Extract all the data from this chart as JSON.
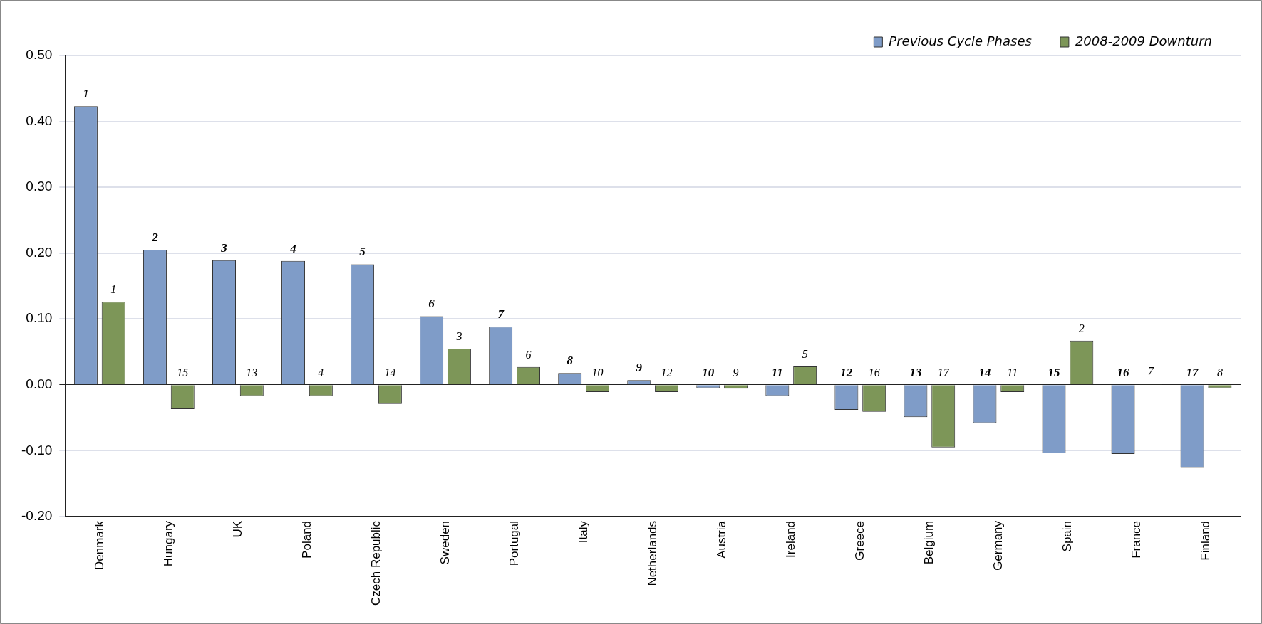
{
  "chart_data": {
    "type": "bar",
    "categories": [
      "Denmark",
      "Hungary",
      "UK",
      "Poland",
      "Czech Republic",
      "Sweden",
      "Portugal",
      "Italy",
      "Netherlands",
      "Austria",
      "Ireland",
      "Greece",
      "Belgium",
      "Germany",
      "Spain",
      "France",
      "Finland"
    ],
    "series": [
      {
        "name": "Previous Cycle Phases",
        "color": "#7f9cc8",
        "values": [
          0.423,
          0.205,
          0.189,
          0.188,
          0.183,
          0.104,
          0.088,
          0.018,
          0.007,
          -0.005,
          -0.017,
          -0.038,
          -0.049,
          -0.058,
          -0.104,
          -0.105,
          -0.126
        ]
      },
      {
        "name": "2008-2009 Downturn",
        "color": "#7d9658",
        "values": [
          0.126,
          -0.037,
          -0.017,
          -0.017,
          -0.029,
          0.055,
          0.027,
          -0.011,
          -0.011,
          -0.006,
          0.028,
          -0.041,
          -0.095,
          -0.011,
          0.067,
          0.002,
          -0.005
        ]
      }
    ],
    "annotations": [
      {
        "text": "1",
        "x": "Denmark",
        "y": 0.423
      },
      {
        "text": "1",
        "x": "Denmark",
        "y": 0.126
      },
      {
        "text": "2",
        "x": "Hungary",
        "y": 0.205
      },
      {
        "text": "15",
        "x": "Hungary",
        "y": 0
      },
      {
        "text": "3",
        "x": "UK",
        "y": 0.189
      },
      {
        "text": "13",
        "x": "UK",
        "y": 0
      },
      {
        "text": "4",
        "x": "Poland",
        "y": 0.188
      },
      {
        "text": "4",
        "x": "Poland",
        "y": 0
      },
      {
        "text": "5",
        "x": "Czech Republic",
        "y": 0.183
      },
      {
        "text": "14",
        "x": "Czech Republic",
        "y": 0
      },
      {
        "text": "6",
        "x": "Sweden",
        "y": 0.104
      },
      {
        "text": "3",
        "x": "Sweden",
        "y": 0.055
      },
      {
        "text": "7",
        "x": "Portugal",
        "y": 0.088
      },
      {
        "text": "6",
        "x": "Portugal",
        "y": 0.027
      },
      {
        "text": "8",
        "x": "Italy",
        "y": 0.018
      },
      {
        "text": "10",
        "x": "Italy",
        "y": 0
      },
      {
        "text": "9",
        "x": "Netherlands",
        "y": 0.007
      },
      {
        "text": "12",
        "x": "Netherlands",
        "y": 0
      },
      {
        "text": "10",
        "x": "Austria",
        "y": 0
      },
      {
        "text": "9",
        "x": "Austria",
        "y": 0
      },
      {
        "text": "11",
        "x": "Ireland",
        "y": 0
      },
      {
        "text": "5",
        "x": "Ireland",
        "y": 0.028
      },
      {
        "text": "12",
        "x": "Greece",
        "y": 0
      },
      {
        "text": "16",
        "x": "Greece",
        "y": 0
      },
      {
        "text": "13",
        "x": "Belgium",
        "y": 0
      },
      {
        "text": "17",
        "x": "Belgium",
        "y": 0
      },
      {
        "text": "14",
        "x": "Germany",
        "y": 0
      },
      {
        "text": "11",
        "x": "Germany",
        "y": 0
      },
      {
        "text": "15",
        "x": "Spain",
        "y": 0
      },
      {
        "text": "2",
        "x": "Spain",
        "y": 0.067
      },
      {
        "text": "16",
        "x": "France",
        "y": 0
      },
      {
        "text": "7",
        "x": "France",
        "y": 0.002
      },
      {
        "text": "17",
        "x": "Finland",
        "y": 0
      },
      {
        "text": "8",
        "x": "Finland",
        "y": 0
      }
    ],
    "ylim": [
      -0.2,
      0.5
    ],
    "yticks": [
      {
        "value": -0.2,
        "label": "-0.20"
      },
      {
        "value": -0.1,
        "label": "-0.10"
      },
      {
        "value": 0,
        "label": "0.00"
      },
      {
        "value": 0.1,
        "label": "0.10"
      },
      {
        "value": 0.2,
        "label": "0.20"
      },
      {
        "value": 0.3,
        "label": "0.30"
      },
      {
        "value": 0.4,
        "label": "0.40"
      },
      {
        "value": 0.5,
        "label": "0.50"
      }
    ],
    "grid": "y",
    "legend": "top right"
  }
}
